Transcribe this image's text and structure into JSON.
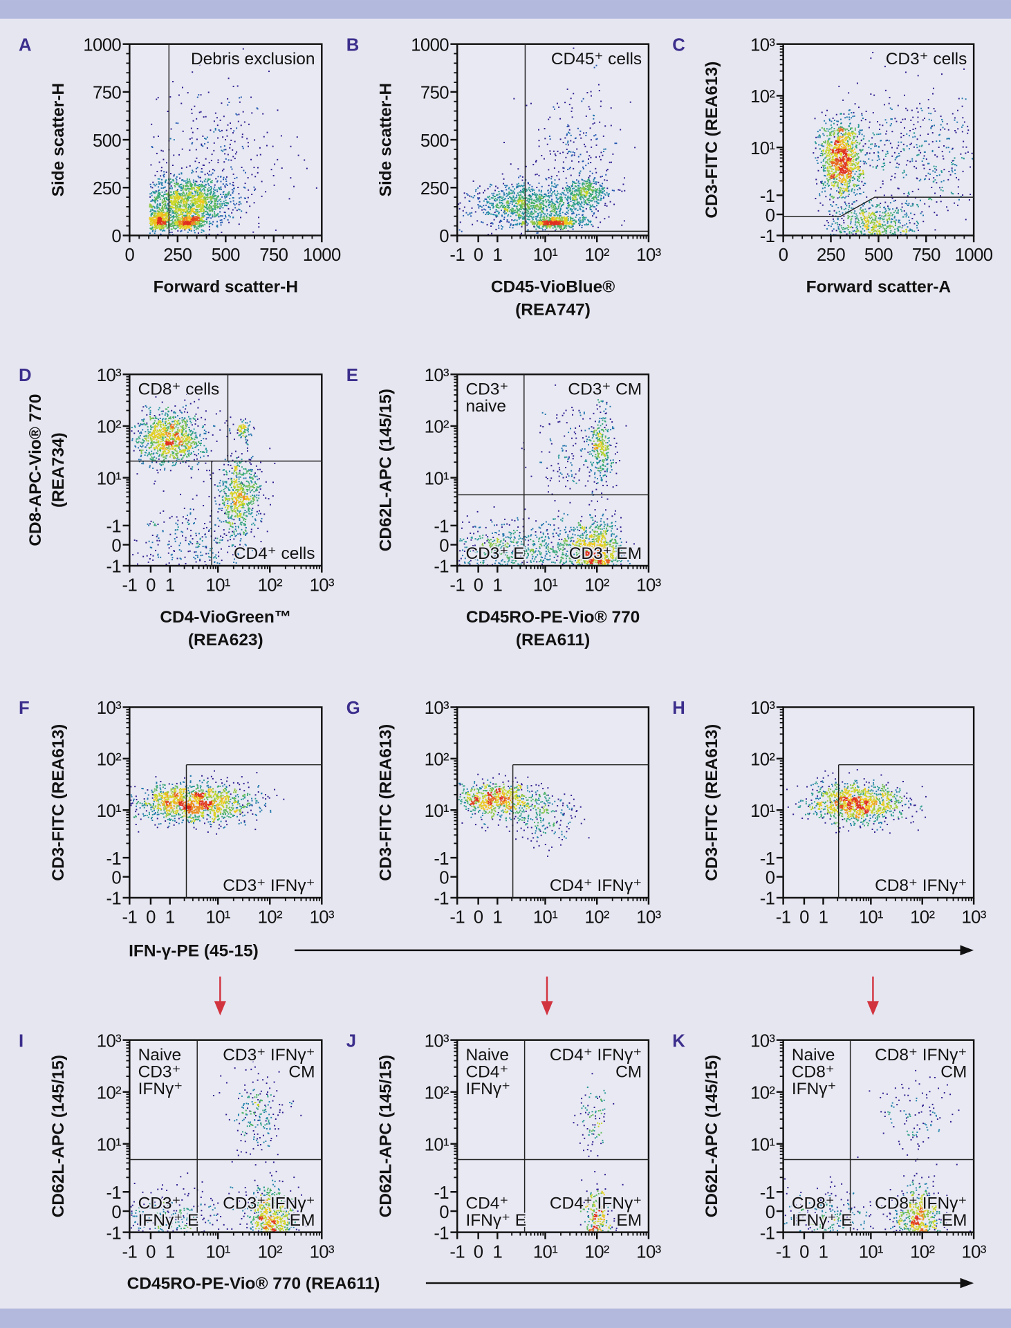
{
  "colors": {
    "background": "#e6e6f1",
    "band": "#b3b8dd",
    "panel_letter": "#3b2e8c",
    "arrow_red": "#d2343f",
    "gate_line": "#222222",
    "density_ramp": [
      "#2b1b8f",
      "#1f4fb0",
      "#1f8fa8",
      "#3cae6a",
      "#c8d826",
      "#f2c81d",
      "#e0301e"
    ]
  },
  "shared_labels": {
    "row3_x": "IFN-γ-PE (45-15)",
    "row4_x": "CD45RO-PE-Vio® 770 (REA611)"
  },
  "chart_data": [
    {
      "id": "A",
      "type": "scatter",
      "letter": "A",
      "xscale": "linear",
      "yscale": "linear",
      "xlim": [
        0,
        1000
      ],
      "ylim": [
        0,
        1000
      ],
      "xticks": [
        "0",
        "250",
        "500",
        "750",
        "1000"
      ],
      "yticks": [
        "0",
        "250",
        "500",
        "750",
        "1000"
      ],
      "xlabel": [
        "Forward scatter-H"
      ],
      "ylabel": [
        "Side scatter-H"
      ],
      "gates": [
        {
          "type": "vline",
          "x": 205
        }
      ],
      "labels": [
        {
          "lines": [
            "Debris exclusion"
          ],
          "position": "top-right"
        }
      ],
      "populations": [
        {
          "x": 150,
          "y": 80,
          "sx": 30,
          "sy": 28,
          "n": 350
        },
        {
          "x": 300,
          "y": 70,
          "sx": 40,
          "sy": 18,
          "n": 350
        },
        {
          "x": 300,
          "y": 180,
          "sx": 120,
          "sy": 65,
          "n": 1400
        },
        {
          "x": 450,
          "y": 420,
          "sx": 200,
          "sy": 200,
          "n": 300
        }
      ],
      "xmin_cut": 100
    },
    {
      "id": "B",
      "type": "scatter",
      "letter": "B",
      "xscale": "biexp",
      "yscale": "linear",
      "ylim": [
        0,
        1000
      ],
      "xticks": [
        "-1",
        "0",
        "1",
        "10¹",
        "10²",
        "10³"
      ],
      "yticks": [
        "0",
        "250",
        "500",
        "750",
        "1000"
      ],
      "xlabel": [
        "CD45-VioBlue®",
        "(REA747)"
      ],
      "ylabel": [
        "Side scatter-H"
      ],
      "gates": [
        {
          "type": "vline",
          "x": 3.8
        },
        {
          "type": "hline_right",
          "y": 22,
          "from_x": 3.8
        }
      ],
      "labels": [
        {
          "lines": [
            "CD45⁺ cells"
          ],
          "position": "top-right"
        }
      ],
      "populations": [
        {
          "x": 15,
          "y": 70,
          "sx": 0.3,
          "sy": 14,
          "n": 450
        },
        {
          "x": 4,
          "y": 160,
          "sx": 0.55,
          "sy": 55,
          "n": 1000
        },
        {
          "x": 60,
          "y": 220,
          "sx": 0.22,
          "sy": 40,
          "n": 350
        },
        {
          "x": 40,
          "y": 430,
          "sx": 0.5,
          "sy": 180,
          "n": 250
        }
      ]
    },
    {
      "id": "C",
      "type": "scatter",
      "letter": "C",
      "xscale": "linear",
      "yscale": "biexp",
      "xlim": [
        0,
        1000
      ],
      "xticks": [
        "0",
        "250",
        "500",
        "750",
        "1000"
      ],
      "yticks": [
        "-1",
        "0",
        "-1",
        "10¹",
        "10²",
        "10³"
      ],
      "xlabel": [
        "Forward scatter-A"
      ],
      "ylabel": [
        "CD3-FITC (REA613)"
      ],
      "gates": [
        {
          "type": "polyline",
          "points": [
            [
              0,
              -0.1
            ],
            [
              300,
              -0.1
            ],
            [
              480,
              0.9
            ],
            [
              1000,
              0.9
            ]
          ]
        }
      ],
      "labels": [
        {
          "lines": [
            "CD3⁺ cells"
          ],
          "position": "top-right"
        }
      ],
      "populations": [
        {
          "x": 300,
          "y": 6,
          "sx": 55,
          "sy": 0.4,
          "n": 1100
        },
        {
          "x": 480,
          "y": -0.5,
          "sx": 120,
          "sy": 0.25,
          "n": 600
        },
        {
          "x": 700,
          "y": 8,
          "sx": 200,
          "sy": 0.6,
          "n": 450
        }
      ],
      "xmin_cut": 150
    },
    {
      "id": "D",
      "type": "scatter",
      "letter": "D",
      "xscale": "biexp",
      "yscale": "biexp",
      "xticks": [
        "-1",
        "0",
        "1",
        "10¹",
        "10²",
        "10³"
      ],
      "yticks": [
        "-1",
        "0",
        "-1",
        "10¹",
        "10²",
        "10³"
      ],
      "xlabel": [
        "CD4-VioGreen™",
        "(REA623)"
      ],
      "ylabel": [
        "CD8-APC-Vio® 770",
        "(REA734)"
      ],
      "gates": [
        {
          "type": "hline",
          "y": 21
        },
        {
          "type": "vline_below",
          "x": 7.4,
          "to_y": 21
        },
        {
          "type": "vline_above",
          "x": 15.5,
          "from_y": 21
        }
      ],
      "labels": [
        {
          "lines": [
            "CD8⁺ cells"
          ],
          "position": "top-left"
        },
        {
          "lines": [
            "CD4⁺ cells"
          ],
          "position": "bottom-right"
        }
      ],
      "populations": [
        {
          "x": 1,
          "y": 60,
          "sx": 0.35,
          "sy": 0.28,
          "n": 1000
        },
        {
          "x": 25,
          "y": 4,
          "sx": 0.22,
          "sy": 0.4,
          "n": 650
        },
        {
          "x": 30,
          "y": 80,
          "sx": 0.1,
          "sy": 0.12,
          "n": 80
        },
        {
          "x": 3,
          "y": -0.2,
          "sx": 0.6,
          "sy": 0.4,
          "n": 300
        }
      ]
    },
    {
      "id": "E",
      "type": "scatter",
      "letter": "E",
      "xscale": "biexp",
      "yscale": "biexp",
      "xticks": [
        "-1",
        "0",
        "1",
        "10¹",
        "10²",
        "10³"
      ],
      "yticks": [
        "-1",
        "0",
        "-1",
        "10¹",
        "10²",
        "10³"
      ],
      "xlabel": [
        "CD45RO-PE-Vio® 770",
        "(REA611)"
      ],
      "ylabel": [
        "CD62L-APC (145/15)"
      ],
      "gates": [
        {
          "type": "vline",
          "x": 3.6
        },
        {
          "type": "hline",
          "y": 4.4
        }
      ],
      "labels": [
        {
          "lines": [
            "CD3⁺",
            "naive"
          ],
          "position": "top-left"
        },
        {
          "lines": [
            "CD3⁺ CM"
          ],
          "position": "top-right"
        },
        {
          "lines": [
            "CD3⁺ E"
          ],
          "position": "bottom-left"
        },
        {
          "lines": [
            "CD3⁺ EM"
          ],
          "position": "bottom-right"
        }
      ],
      "populations": [
        {
          "x": 100,
          "y": -0.5,
          "sx": 0.25,
          "sy": 0.35,
          "n": 1000
        },
        {
          "x": 120,
          "y": 40,
          "sx": 0.12,
          "sy": 0.4,
          "n": 300
        },
        {
          "x": 1,
          "y": -0.3,
          "sx": 0.6,
          "sy": 0.3,
          "n": 500
        },
        {
          "x": 15,
          "y": -0.2,
          "sx": 0.4,
          "sy": 0.3,
          "n": 300
        },
        {
          "x": 30,
          "y": 30,
          "sx": 0.4,
          "sy": 0.5,
          "n": 150
        }
      ]
    },
    {
      "id": "F",
      "type": "scatter",
      "letter": "F",
      "xscale": "biexp",
      "yscale": "biexp",
      "xticks": [
        "-1",
        "0",
        "1",
        "10¹",
        "10²",
        "10³"
      ],
      "yticks": [
        "-1",
        "0",
        "-1",
        "10¹",
        "10²",
        "10³"
      ],
      "xlabel": [],
      "ylabel": [
        "CD3-FITC (REA613)"
      ],
      "gates": [
        {
          "type": "vline_below",
          "x": 2.2,
          "to_y": 76
        },
        {
          "type": "hline_right",
          "y": 76,
          "from_x": 2.2
        }
      ],
      "labels": [
        {
          "lines": [
            "CD3⁺ IFNγ⁺"
          ],
          "position": "bottom-right"
        }
      ],
      "populations": [
        {
          "x": 3,
          "y": 14,
          "sx": 0.6,
          "sy": 0.2,
          "n": 1400
        }
      ]
    },
    {
      "id": "G",
      "type": "scatter",
      "letter": "G",
      "xscale": "biexp",
      "yscale": "biexp",
      "xticks": [
        "-1",
        "0",
        "1",
        "10¹",
        "10²",
        "10³"
      ],
      "yticks": [
        "-1",
        "0",
        "-1",
        "10¹",
        "10²",
        "10³"
      ],
      "xlabel": [],
      "ylabel": [
        "CD3-FITC (REA613)"
      ],
      "gates": [
        {
          "type": "vline_below",
          "x": 2.1,
          "to_y": 76
        },
        {
          "type": "hline_right",
          "y": 76,
          "from_x": 2.1
        }
      ],
      "labels": [
        {
          "lines": [
            "CD4⁺ IFNγ⁺"
          ],
          "position": "bottom-right"
        }
      ],
      "populations": [
        {
          "x": 0.8,
          "y": 16,
          "sx": 0.45,
          "sy": 0.18,
          "n": 700
        },
        {
          "x": 8,
          "y": 8,
          "sx": 0.4,
          "sy": 0.3,
          "n": 220
        }
      ]
    },
    {
      "id": "H",
      "type": "scatter",
      "letter": "H",
      "xscale": "biexp",
      "yscale": "biexp",
      "xticks": [
        "-1",
        "0",
        "1",
        "10¹",
        "10²",
        "10³"
      ],
      "yticks": [
        "-1",
        "0",
        "-1",
        "10¹",
        "10²",
        "10³"
      ],
      "xlabel": [],
      "ylabel": [
        "CD3-FITC (REA613)"
      ],
      "gates": [
        {
          "type": "vline_below",
          "x": 2.1,
          "to_y": 76
        },
        {
          "type": "hline_right",
          "y": 76,
          "from_x": 2.1
        }
      ],
      "labels": [
        {
          "lines": [
            "CD8⁺ IFNγ⁺"
          ],
          "position": "bottom-right"
        }
      ],
      "populations": [
        {
          "x": 5,
          "y": 14,
          "sx": 0.5,
          "sy": 0.2,
          "n": 1100
        }
      ]
    },
    {
      "id": "I",
      "type": "scatter",
      "letter": "I",
      "xscale": "biexp",
      "yscale": "biexp",
      "xticks": [
        "-1",
        "0",
        "1",
        "10¹",
        "10²",
        "10³"
      ],
      "yticks": [
        "-1",
        "0",
        "-1",
        "10¹",
        "10²",
        "10³"
      ],
      "xlabel": [],
      "ylabel": [
        "CD62L-APC (145/15)"
      ],
      "gates": [
        {
          "type": "vline",
          "x": 3.7
        },
        {
          "type": "hline",
          "y": 4.7
        }
      ],
      "labels": [
        {
          "lines": [
            "Naive",
            "CD3⁺",
            "IFNγ⁺"
          ],
          "position": "top-left"
        },
        {
          "lines": [
            "CD3⁺ IFNγ⁺",
            "CM"
          ],
          "position": "top-right"
        },
        {
          "lines": [
            "CD3⁺",
            "IFNγ⁺ E"
          ],
          "position": "bottom-left"
        },
        {
          "lines": [
            "CD3⁺ IFNγ⁺",
            "EM"
          ],
          "position": "bottom-right"
        }
      ],
      "populations": [
        {
          "x": 100,
          "y": -0.4,
          "sx": 0.25,
          "sy": 0.35,
          "n": 700
        },
        {
          "x": 1,
          "y": -0.3,
          "sx": 0.6,
          "sy": 0.3,
          "n": 350
        },
        {
          "x": 60,
          "y": 40,
          "sx": 0.3,
          "sy": 0.4,
          "n": 200
        }
      ]
    },
    {
      "id": "J",
      "type": "scatter",
      "letter": "J",
      "xscale": "biexp",
      "yscale": "biexp",
      "xticks": [
        "-1",
        "0",
        "1",
        "10¹",
        "10²",
        "10³"
      ],
      "yticks": [
        "-1",
        "0",
        "-1",
        "10¹",
        "10²",
        "10³"
      ],
      "xlabel": [],
      "ylabel": [
        "CD62L-APC (145/15)"
      ],
      "gates": [
        {
          "type": "vline",
          "x": 3.7
        },
        {
          "type": "hline",
          "y": 4.7
        }
      ],
      "labels": [
        {
          "lines": [
            "Naive",
            "CD4⁺",
            "IFNγ⁺"
          ],
          "position": "top-left"
        },
        {
          "lines": [
            "CD4⁺ IFNγ⁺",
            "CM"
          ],
          "position": "top-right"
        },
        {
          "lines": [
            "CD4⁺",
            "IFNγ⁺ E"
          ],
          "position": "bottom-left"
        },
        {
          "lines": [
            "CD4⁺ IFNγ⁺",
            "EM"
          ],
          "position": "bottom-right"
        }
      ],
      "populations": [
        {
          "x": 100,
          "y": -0.4,
          "sx": 0.15,
          "sy": 0.3,
          "n": 280
        },
        {
          "x": 80,
          "y": 30,
          "sx": 0.15,
          "sy": 0.4,
          "n": 90
        }
      ]
    },
    {
      "id": "K",
      "type": "scatter",
      "letter": "K",
      "xscale": "biexp",
      "yscale": "biexp",
      "xticks": [
        "-1",
        "0",
        "1",
        "10¹",
        "10²",
        "10³"
      ],
      "yticks": [
        "-1",
        "0",
        "-1",
        "10¹",
        "10²",
        "10³"
      ],
      "xlabel": [],
      "ylabel": [
        "CD62L-APC (145/15)"
      ],
      "gates": [
        {
          "type": "vline",
          "x": 3.7
        },
        {
          "type": "hline",
          "y": 4.7
        }
      ],
      "labels": [
        {
          "lines": [
            "Naive",
            "CD8⁺",
            "IFNγ⁺"
          ],
          "position": "top-left"
        },
        {
          "lines": [
            "CD8⁺ IFNγ⁺",
            "CM"
          ],
          "position": "top-right"
        },
        {
          "lines": [
            "CD8⁺",
            "IFNγ⁺ E"
          ],
          "position": "bottom-left"
        },
        {
          "lines": [
            "CD8⁺ IFNγ⁺",
            "EM"
          ],
          "position": "bottom-right"
        }
      ],
      "populations": [
        {
          "x": 80,
          "y": -0.4,
          "sx": 0.25,
          "sy": 0.35,
          "n": 650
        },
        {
          "x": 1,
          "y": -0.3,
          "sx": 0.5,
          "sy": 0.3,
          "n": 280
        },
        {
          "x": 60,
          "y": 40,
          "sx": 0.4,
          "sy": 0.4,
          "n": 110
        }
      ]
    }
  ]
}
